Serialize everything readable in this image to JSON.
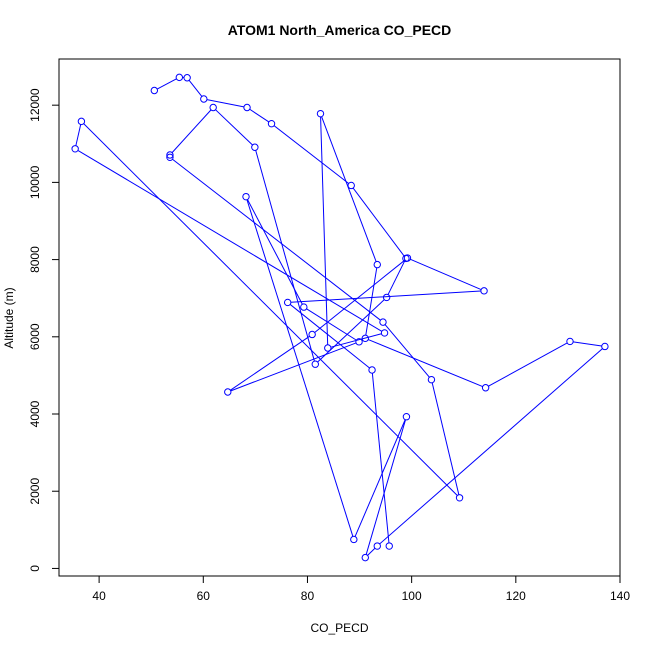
{
  "colors": {
    "series": "#0000ff",
    "axis": "#000000",
    "background": "#ffffff"
  },
  "chart_data": {
    "type": "line",
    "title": "ATOM1 North_America CO_PECD",
    "xlabel": "CO_PECD",
    "ylabel": "Altitude (m)",
    "xlim": [
      32.3,
      140
    ],
    "ylim": [
      -196,
      13196
    ],
    "x_ticks": [
      40,
      60,
      80,
      100,
      120,
      140
    ],
    "y_ticks": [
      0,
      2000,
      4000,
      6000,
      8000,
      10000,
      12000
    ],
    "grid": false,
    "markers": "open-circle",
    "x": [
      50.6,
      55.4,
      56.9,
      60.1,
      68.4,
      73.1,
      88.4,
      98.9,
      95.2,
      81.5,
      69.9,
      61.9,
      53.6,
      53.6,
      94.5,
      103.8,
      109.2,
      36.6,
      35.4,
      94.8,
      83.9,
      82.5,
      93.4,
      91.1,
      114.2,
      130.4,
      137.1,
      93.4,
      91.1,
      99.0,
      88.9,
      68.2,
      79.3,
      89.9,
      64.7,
      80.9,
      99.2,
      113.9,
      76.2,
      92.4,
      95.7
    ],
    "y": [
      12380,
      12720,
      12710,
      12160,
      11940,
      11520,
      9920,
      8030,
      7020,
      5290,
      10910,
      11940,
      10710,
      10650,
      6380,
      4890,
      1830,
      11580,
      10870,
      6100,
      5710,
      11780,
      7870,
      5960,
      4680,
      5880,
      5750,
      580,
      280,
      3930,
      750,
      9630,
      6770,
      5870,
      4570,
      6060,
      8040,
      7190,
      6890,
      5140,
      580
    ]
  }
}
